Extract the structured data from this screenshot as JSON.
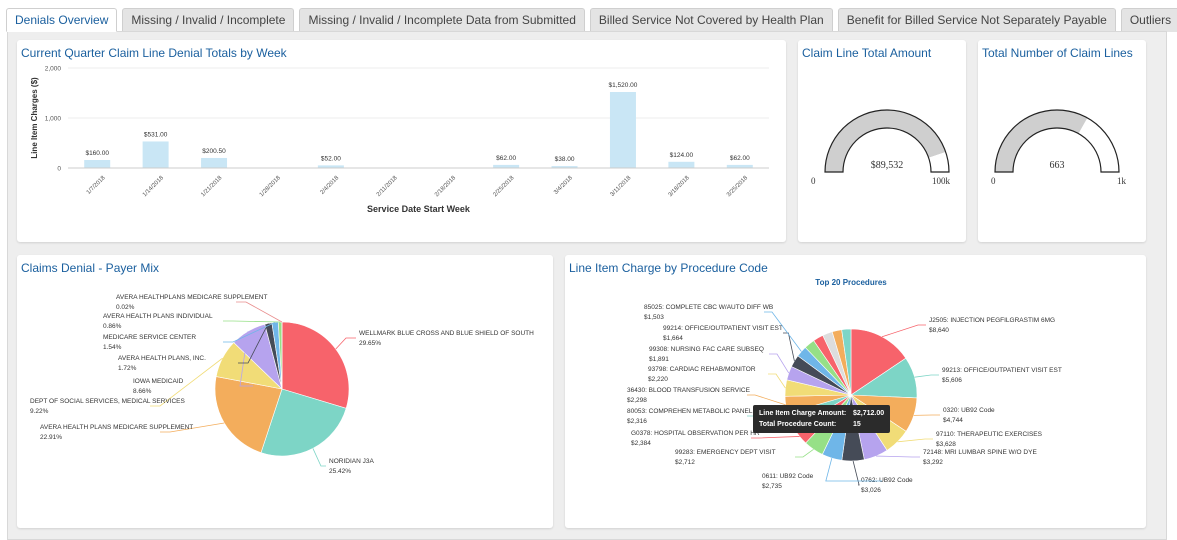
{
  "tabs": [
    {
      "label": "Denials Overview",
      "active": true
    },
    {
      "label": "Missing / Invalid / Incomplete",
      "active": false
    },
    {
      "label": "Missing / Invalid / Incomplete Data from Submitted",
      "active": false
    },
    {
      "label": "Billed Service Not Covered by Health Plan",
      "active": false
    },
    {
      "label": "Benefit for Billed Service Not Separately Payable",
      "active": false
    },
    {
      "label": "Outliers",
      "active": false
    }
  ],
  "panels": {
    "weekly": {
      "title": "Current Quarter Claim Line Denial Totals by Week"
    },
    "amount": {
      "title": "Claim Line Total Amount"
    },
    "count": {
      "title": "Total Number of Claim Lines"
    },
    "payer": {
      "title": "Claims Denial - Payer Mix"
    },
    "procedure": {
      "title": "Line Item Charge by Procedure Code"
    }
  },
  "tooltip": {
    "amount_label": "Line Item Charge Amount:",
    "amount_value": "$2,712.00",
    "count_label": "Total Procedure Count:",
    "count_value": "15"
  },
  "chart_data": [
    {
      "type": "bar",
      "title": "Current Quarter Claim Line Denial Totals by Week",
      "xlabel": "Service Date Start Week",
      "ylabel": "Line Item Charges ($)",
      "ylim": [
        0,
        2000
      ],
      "yticks": [
        "0",
        "1,000",
        "2,000"
      ],
      "grid": true,
      "color": "#c9e6f5",
      "categories": [
        "1/7/2018",
        "1/14/2018",
        "1/21/2018",
        "1/28/2018",
        "2/4/2018",
        "2/11/2018",
        "2/18/2018",
        "2/25/2018",
        "3/4/2018",
        "3/11/2018",
        "3/18/2018",
        "3/25/2018"
      ],
      "values": [
        160,
        531,
        200.5,
        0,
        52,
        0,
        0,
        62,
        38,
        1520,
        124,
        62
      ],
      "labels": [
        "$160.00",
        "$531.00",
        "$200.50",
        "",
        "$52.00",
        "",
        "",
        "$62.00",
        "$38.00",
        "$1,520.00",
        "$124.00",
        "$62.00"
      ]
    },
    {
      "type": "gauge",
      "title": "Claim Line Total Amount",
      "value": 89532,
      "value_label": "$89,532",
      "min_label": "0",
      "max_label": "100k",
      "min": 0,
      "max": 100000
    },
    {
      "type": "gauge",
      "title": "Total Number of Claim Lines",
      "value": 663,
      "value_label": "663",
      "min_label": "0",
      "max_label": "1k",
      "min": 0,
      "max": 1000
    },
    {
      "type": "pie",
      "title": "Claims Denial - Payer Mix",
      "slices": [
        {
          "name": "WELLMARK BLUE CROSS AND BLUE SHIELD OF SOUTH",
          "pct_label": "29.65%",
          "value": 29.65,
          "color": "#f7636b"
        },
        {
          "name": "NORIDIAN J3A",
          "pct_label": "25.42%",
          "value": 25.42,
          "color": "#7dd5c6"
        },
        {
          "name": "AVERA HEALTH PLANS MEDICARE SUPPLEMENT",
          "pct_label": "22.91%",
          "value": 22.91,
          "color": "#f3ad5c"
        },
        {
          "name": "DEPT OF SOCIAL SERVICES, MEDICAL SERVICES",
          "pct_label": "9.22%",
          "value": 9.22,
          "color": "#f1dc77"
        },
        {
          "name": "IOWA MEDICAID",
          "pct_label": "8.66%",
          "value": 8.66,
          "color": "#b6a3ee"
        },
        {
          "name": "AVERA HEALTH PLANS, INC.",
          "pct_label": "1.72%",
          "value": 1.72,
          "color": "#454b57"
        },
        {
          "name": "MEDICARE SERVICE CENTER",
          "pct_label": "1.54%",
          "value": 1.54,
          "color": "#6fb6e8"
        },
        {
          "name": "AVERA HEALTH PLANS INDIVIDUAL",
          "pct_label": "0.86%",
          "value": 0.86,
          "color": "#96e087"
        },
        {
          "name": "AVERA HEALTHPLANS MEDICARE SUPPLEMENT",
          "pct_label": "0.02%",
          "value": 0.02,
          "color": "#e88c8c"
        }
      ]
    },
    {
      "type": "pie",
      "title": "Line Item Charge by Procedure Code",
      "subtitle": "Top 20 Procedures",
      "slices": [
        {
          "name": "J2505: INJECTION PEGFILGRASTIM 6MG",
          "value_label": "$8,640",
          "value": 8640,
          "color": "#f7636b"
        },
        {
          "name": "99213: OFFICE/OUTPATIENT VISIT EST",
          "value_label": "$5,606",
          "value": 5606,
          "color": "#7dd5c6"
        },
        {
          "name": "0320: UB92 Code",
          "value_label": "$4,744",
          "value": 4744,
          "color": "#f3ad5c"
        },
        {
          "name": "97110: THERAPEUTIC EXERCISES",
          "value_label": "$3,628",
          "value": 3628,
          "color": "#f1dc77"
        },
        {
          "name": "72148: MRI LUMBAR SPINE W/O DYE",
          "value_label": "$3,292",
          "value": 3292,
          "color": "#b6a3ee"
        },
        {
          "name": "0762: UB92 Code",
          "value_label": "$3,026",
          "value": 3026,
          "color": "#454b57"
        },
        {
          "name": "0611: UB92 Code",
          "value_label": "$2,735",
          "value": 2735,
          "color": "#6fb6e8"
        },
        {
          "name": "99283: EMERGENCY DEPT VISIT",
          "value_label": "$2,712",
          "value": 2712,
          "color": "#96e087"
        },
        {
          "name": "G0378: HOSPITAL OBSERVATION PER HR",
          "value_label": "$2,384",
          "value": 2384,
          "color": "#f7636b"
        },
        {
          "name": "80053: COMPREHEN METABOLIC PANEL",
          "value_label": "$2,316",
          "value": 2316,
          "color": "#7dd5c6"
        },
        {
          "name": "36430: BLOOD TRANSFUSION SERVICE",
          "value_label": "$2,298",
          "value": 2298,
          "color": "#f3ad5c"
        },
        {
          "name": "93798: CARDIAC REHAB/MONITOR",
          "value_label": "$2,220",
          "value": 2220,
          "color": "#f1dc77"
        },
        {
          "name": "99308: NURSING FAC CARE SUBSEQ",
          "value_label": "$1,891",
          "value": 1891,
          "color": "#b6a3ee"
        },
        {
          "name": "99214: OFFICE/OUTPATIENT VISIT EST",
          "value_label": "$1,664",
          "value": 1664,
          "color": "#454b57"
        },
        {
          "name": "85025: COMPLETE CBC W/AUTO DIFF WB",
          "value_label": "$1,503",
          "value": 1503,
          "color": "#6fb6e8"
        },
        {
          "name": "",
          "value_label": "",
          "value": 1450,
          "color": "#96e087"
        },
        {
          "name": "",
          "value_label": "",
          "value": 1400,
          "color": "#f7636b"
        },
        {
          "name": "",
          "value_label": "",
          "value": 1350,
          "color": "#dddddd"
        },
        {
          "name": "",
          "value_label": "",
          "value": 1300,
          "color": "#f3ad5c"
        },
        {
          "name": "",
          "value_label": "",
          "value": 1250,
          "color": "#7dd5c6"
        }
      ]
    }
  ]
}
